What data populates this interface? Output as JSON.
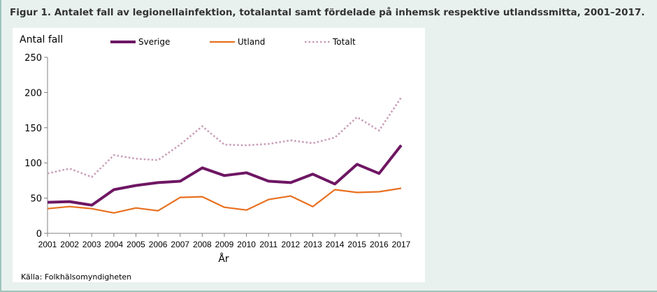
{
  "figure": {
    "title": "Figur 1. Antalet fall av legionellainfektion, totalantal samt fördelade på inhemsk respektive utlandssmitta, 2001–2017.",
    "source": "Källa:  Folkhälsomyndigheten"
  },
  "chart_data": {
    "type": "line",
    "ylabel": "Antal fall",
    "xlabel": "År",
    "ylim": [
      0,
      250
    ],
    "yticks": [
      0,
      50,
      100,
      150,
      200,
      250
    ],
    "categories": [
      "2001",
      "2002",
      "2003",
      "2004",
      "2005",
      "2006",
      "2007",
      "2008",
      "2009",
      "2010",
      "2011",
      "2012",
      "2013",
      "2014",
      "2015",
      "2016",
      "2017"
    ],
    "legend_position": "top",
    "grid": false,
    "series": [
      {
        "name": "Sverige",
        "color": "#6e1663",
        "style": "solid-thick",
        "values": [
          44,
          45,
          40,
          62,
          68,
          72,
          74,
          93,
          82,
          86,
          74,
          72,
          84,
          70,
          98,
          85,
          125
        ]
      },
      {
        "name": "Utland",
        "color": "#e8701f",
        "style": "solid",
        "values": [
          35,
          38,
          35,
          29,
          36,
          32,
          51,
          52,
          37,
          33,
          48,
          53,
          38,
          62,
          58,
          59,
          64
        ]
      },
      {
        "name": "Totalt",
        "color": "#c99db8",
        "style": "dotted",
        "values": [
          85,
          92,
          80,
          111,
          106,
          104,
          126,
          152,
          126,
          125,
          127,
          132,
          128,
          136,
          165,
          146,
          193
        ]
      }
    ]
  }
}
